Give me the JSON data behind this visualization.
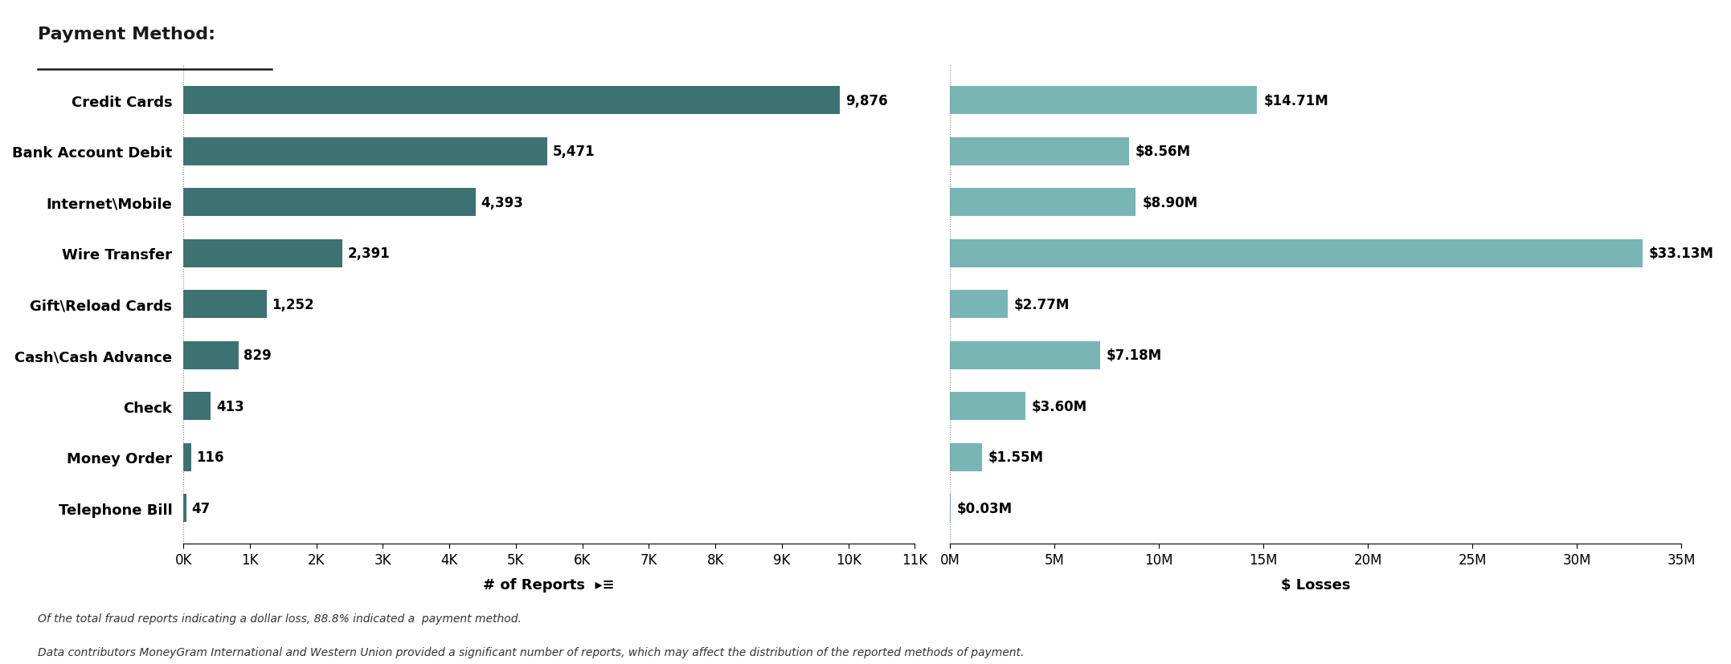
{
  "categories": [
    "Credit Cards",
    "Bank Account Debit",
    "Internet\\Mobile",
    "Wire Transfer",
    "Gift\\Reload Cards",
    "Cash\\Cash Advance",
    "Check",
    "Money Order",
    "Telephone Bill"
  ],
  "reports": [
    9876,
    5471,
    4393,
    2391,
    1252,
    829,
    413,
    116,
    47
  ],
  "losses_m": [
    14.71,
    8.56,
    8.9,
    33.13,
    2.77,
    7.18,
    3.6,
    1.55,
    0.03
  ],
  "report_labels": [
    "9,876",
    "5,471",
    "4,393",
    "2,391",
    "1,252",
    "829",
    "413",
    "116",
    "47"
  ],
  "loss_labels": [
    "$14.71M",
    "$8.56M",
    "$8.90M",
    "$33.13M",
    "$2.77M",
    "$7.18M",
    "$3.60M",
    "$1.55M",
    "$0.03M"
  ],
  "bar_color_dark": "#3d7272",
  "bar_color_light": "#7ab5b5",
  "title": "Payment Method:",
  "xlabel_left": "# of Reports",
  "xlabel_right": "$ Losses",
  "footnote1": "Of the total fraud reports indicating a dollar loss, 88.8% indicated a  payment method.",
  "footnote2": "Data contributors MoneyGram International and Western Union provided a significant number of reports, which may affect the distribution of the reported methods of payment.",
  "xlim_left": [
    0,
    11000
  ],
  "xlim_right": [
    0,
    35
  ],
  "xticks_left": [
    0,
    1000,
    2000,
    3000,
    4000,
    5000,
    6000,
    7000,
    8000,
    9000,
    10000,
    11000
  ],
  "xtick_labels_left": [
    "0K",
    "1K",
    "2K",
    "3K",
    "4K",
    "5K",
    "6K",
    "7K",
    "8K",
    "9K",
    "10K",
    "11K"
  ],
  "xticks_right": [
    0,
    5,
    10,
    15,
    20,
    25,
    30,
    35
  ],
  "xtick_labels_right": [
    "0M",
    "5M",
    "10M",
    "15M",
    "20M",
    "25M",
    "30M",
    "35M"
  ]
}
